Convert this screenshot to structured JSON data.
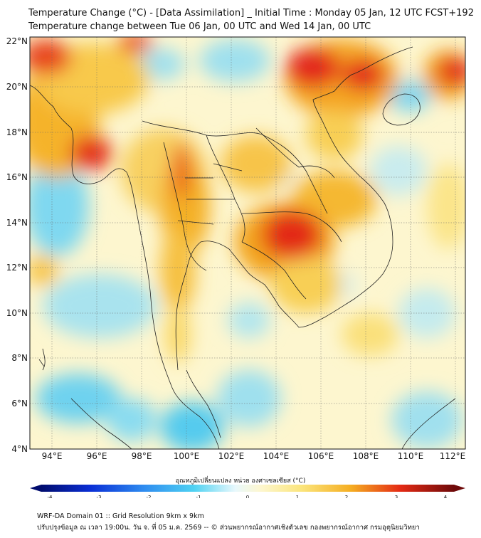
{
  "header": {
    "title_line1": "Temperature Change (°C) - [Data Assimilation] _ Initial Time : Monday 05 Jan, 12 UTC FCST+192",
    "title_line2": "Temperature change between Tue 06 Jan, 00 UTC and Wed 14 Jan, 00 UTC"
  },
  "map": {
    "lat_labels": [
      "22°N",
      "20°N",
      "18°N",
      "16°N",
      "14°N",
      "12°N",
      "10°N",
      "8°N",
      "6°N",
      "4°N"
    ],
    "lon_labels": [
      "94°E",
      "96°E",
      "98°E",
      "100°E",
      "102°E",
      "104°E",
      "106°E",
      "108°E",
      "110°E",
      "112°E"
    ],
    "lat_range": [
      4,
      22
    ],
    "lon_range": [
      93,
      112.5
    ],
    "gridlines": true
  },
  "colorbar": {
    "title": "อุณหภูมิเปลี่ยนแปลง หน่วย องศาเซลเซียส (°C)",
    "ticks": [
      "-4",
      "-3",
      "-2",
      "-1",
      "0",
      "1",
      "2",
      "3",
      "4"
    ],
    "range": [
      -4,
      4
    ]
  },
  "footer": {
    "line1": "WRF-DA Domain 01 :: Grid Resolution 9km x 9km",
    "line2": "ปรับปรุงข้อมูล ณ เวลา 19:00น. วัน จ. ที่ 05 ม.ค. 2569 -- © ส่วนพยากรณ์อากาศเชิงตัวเลข กองพยากรณ์อากาศ กรมอุตุนิยมวิทยา"
  },
  "colors": {
    "ocean_neutral": "#fdf7d0",
    "warm": "#f3a81c",
    "hot": "#e0141a",
    "cool": "#6fd6f2"
  }
}
